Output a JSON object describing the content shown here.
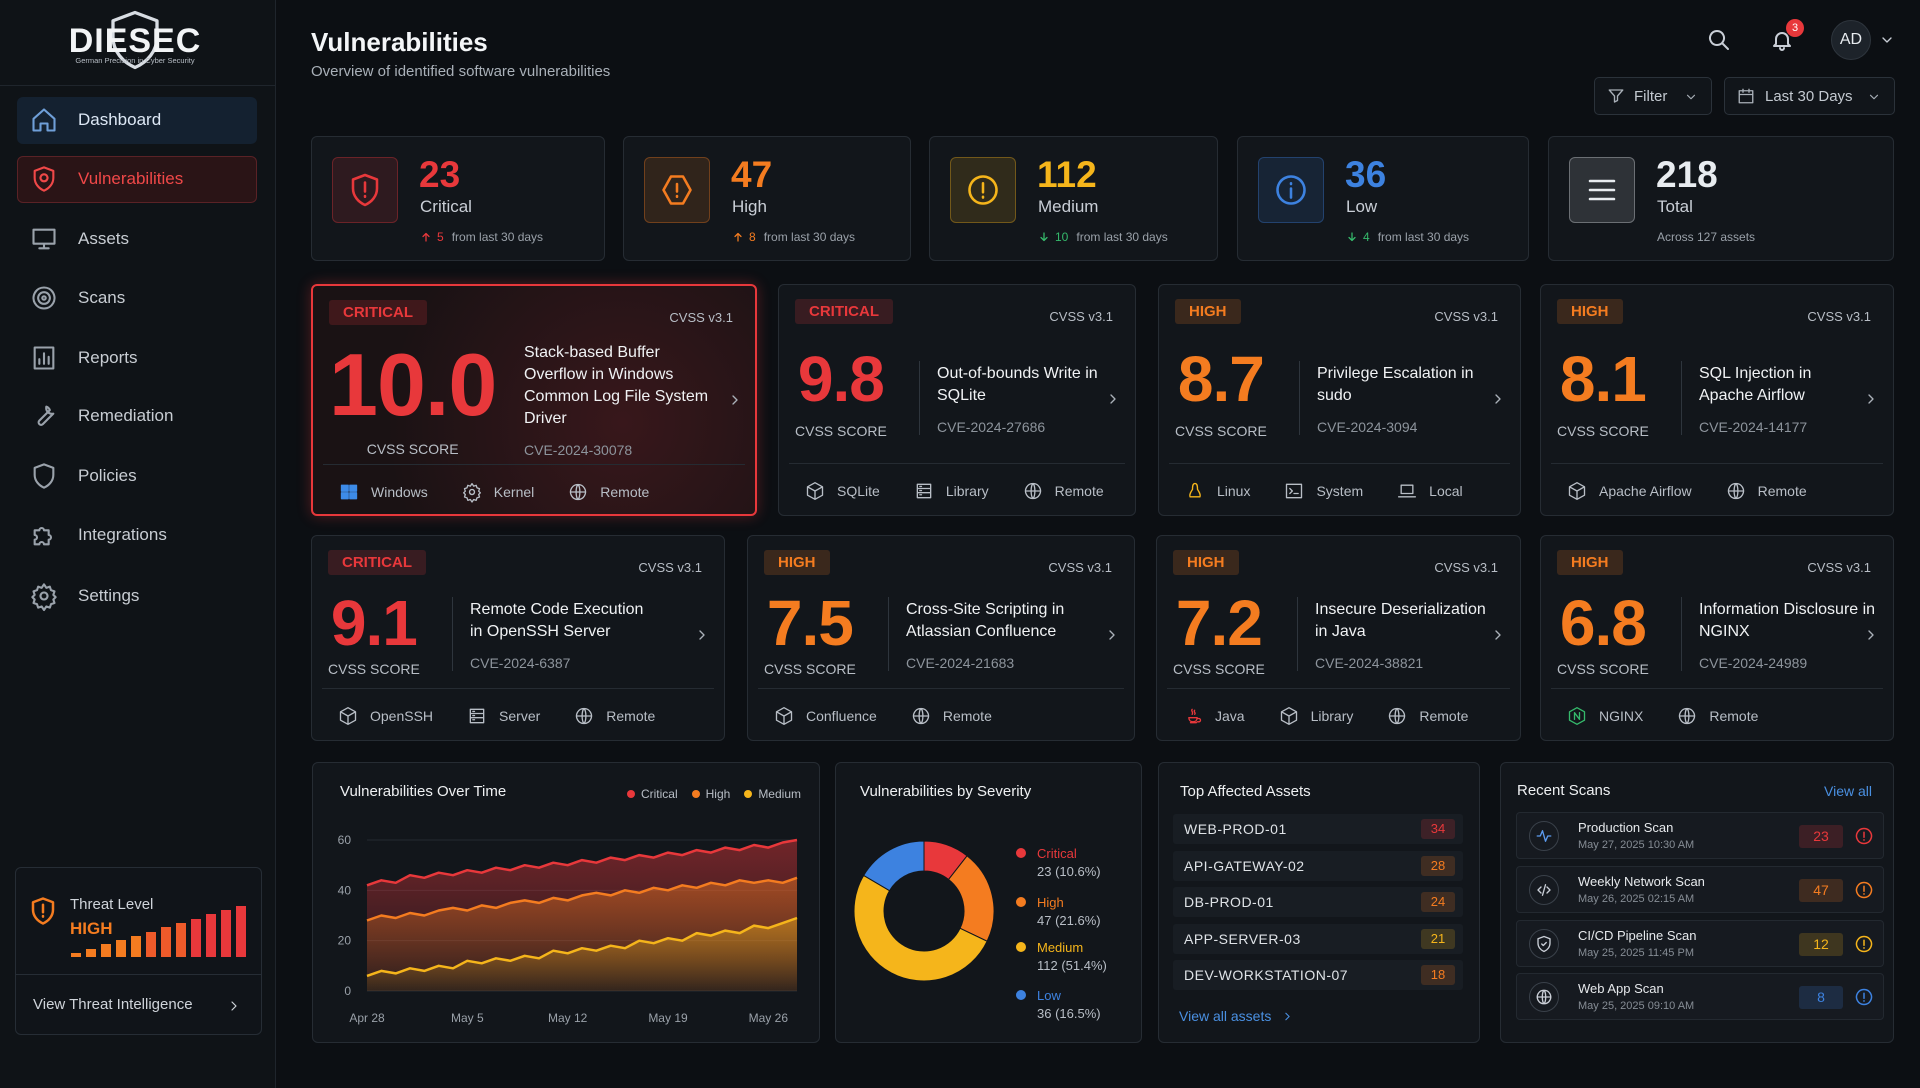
{
  "brand": {
    "name": "DIESEC",
    "tagline": "German Precision in Cyber Security"
  },
  "nav": {
    "items": [
      "Dashboard",
      "Vulnerabilities",
      "Assets",
      "Scans",
      "Reports",
      "Remediation",
      "Policies",
      "Integrations",
      "Settings"
    ],
    "active_index": 1
  },
  "threat": {
    "label": "Threat Level",
    "level": "HIGH",
    "link": "View Threat Intelligence"
  },
  "header": {
    "title": "Vulnerabilities",
    "subtitle": "Overview of identified software vulnerabilities",
    "notifications": 3,
    "user": "AD",
    "filter": "Filter",
    "range": "Last 30 Days"
  },
  "stats": [
    {
      "value": 23,
      "label": "Critical",
      "delta": 5,
      "trend": "up",
      "note": "from last 30 days",
      "color": "#e8383b"
    },
    {
      "value": 47,
      "label": "High",
      "delta": 8,
      "trend": "up",
      "note": "from last 30 days",
      "color": "#f47c20"
    },
    {
      "value": 112,
      "label": "Medium",
      "delta": 10,
      "trend": "down",
      "note": "from last 30 days",
      "color": "#f5b51b"
    },
    {
      "value": 36,
      "label": "Low",
      "delta": 4,
      "trend": "down",
      "note": "from last 30 days",
      "color": "#3d82e0"
    },
    {
      "value": 218,
      "label": "Total",
      "note": "Across 127 assets",
      "color": "#e8ecf0"
    }
  ],
  "vulns": [
    {
      "severity": "CRITICAL",
      "color": "#e8383b",
      "highlighted": true,
      "cvss": "CVSS v3.1",
      "score": "10.0",
      "score_label": "CVSS SCORE",
      "title": "Stack-based Buffer Overflow in Windows Common Log File System Driver",
      "cve": "CVE-2024-30078",
      "tags": [
        "Windows",
        "Kernel",
        "Remote"
      ]
    },
    {
      "severity": "CRITICAL",
      "color": "#e8383b",
      "cvss": "CVSS v3.1",
      "score": "9.8",
      "score_label": "CVSS SCORE",
      "title": "Out-of-bounds Write in SQLite",
      "cve": "CVE-2024-27686",
      "tags": [
        "SQLite",
        "Library",
        "Remote"
      ]
    },
    {
      "severity": "HIGH",
      "color": "#f47c20",
      "cvss": "CVSS v3.1",
      "score": "8.7",
      "score_label": "CVSS SCORE",
      "title": "Privilege Escalation in sudo",
      "cve": "CVE-2024-3094",
      "tags": [
        "Linux",
        "System",
        "Local"
      ]
    },
    {
      "severity": "HIGH",
      "color": "#f47c20",
      "cvss": "CVSS v3.1",
      "score": "8.1",
      "score_label": "CVSS SCORE",
      "title": "SQL Injection in Apache Airflow",
      "cve": "CVE-2024-14177",
      "tags": [
        "Apache Airflow",
        "Remote"
      ]
    },
    {
      "severity": "CRITICAL",
      "color": "#e8383b",
      "cvss": "CVSS v3.1",
      "score": "9.1",
      "score_label": "CVSS SCORE",
      "title": "Remote Code Execution in OpenSSH Server",
      "cve": "CVE-2024-6387",
      "tags": [
        "OpenSSH",
        "Server",
        "Remote"
      ]
    },
    {
      "severity": "HIGH",
      "color": "#f47c20",
      "cvss": "CVSS v3.1",
      "score": "7.5",
      "score_label": "CVSS SCORE",
      "title": "Cross-Site Scripting in Atlassian Confluence",
      "cve": "CVE-2024-21683",
      "tags": [
        "Confluence",
        "Remote"
      ]
    },
    {
      "severity": "HIGH",
      "color": "#f47c20",
      "cvss": "CVSS v3.1",
      "score": "7.2",
      "score_label": "CVSS SCORE",
      "title": "Insecure Deserialization in Java",
      "cve": "CVE-2024-38821",
      "tags": [
        "Java",
        "Library",
        "Remote"
      ]
    },
    {
      "severity": "HIGH",
      "color": "#f47c20",
      "cvss": "CVSS v3.1",
      "score": "6.8",
      "score_label": "CVSS SCORE",
      "title": "Information Disclosure in NGINX",
      "cve": "CVE-2024-24989",
      "tags": [
        "NGINX",
        "Remote"
      ]
    }
  ],
  "chart_data": [
    {
      "type": "line",
      "title": "Vulnerabilities Over Time",
      "categories": [
        "Apr 28",
        null,
        null,
        null,
        null,
        null,
        null,
        "May 5",
        null,
        null,
        null,
        null,
        null,
        null,
        "May 12",
        null,
        null,
        null,
        null,
        null,
        null,
        "May 19",
        null,
        null,
        null,
        null,
        null,
        null,
        "May 26",
        null,
        null
      ],
      "series": [
        {
          "name": "Critical",
          "color": "#e8383b",
          "values": [
            42,
            44,
            43,
            46,
            45,
            47,
            46,
            48,
            47,
            49,
            48,
            50,
            49,
            51,
            50,
            52,
            51,
            53,
            52,
            54,
            53,
            55,
            54,
            56,
            55,
            57,
            56,
            58,
            57,
            59,
            60
          ]
        },
        {
          "name": "High",
          "color": "#f47c20",
          "values": [
            28,
            30,
            29,
            31,
            30,
            32,
            33,
            32,
            34,
            33,
            35,
            36,
            35,
            37,
            36,
            38,
            39,
            38,
            40,
            39,
            41,
            40,
            42,
            41,
            43,
            42,
            44,
            43,
            44,
            43,
            45
          ]
        },
        {
          "name": "Medium",
          "color": "#f5b51b",
          "values": [
            6,
            8,
            7,
            9,
            8,
            10,
            9,
            12,
            11,
            13,
            12,
            14,
            13,
            16,
            15,
            17,
            16,
            18,
            17,
            20,
            19,
            21,
            20,
            23,
            22,
            24,
            23,
            26,
            25,
            27,
            29
          ]
        }
      ],
      "ylim": [
        0,
        60
      ],
      "yticks": [
        0,
        20,
        40,
        60
      ],
      "grid": true,
      "legend": "top-right"
    },
    {
      "type": "pie",
      "title": "Vulnerabilities by Severity",
      "donut": true,
      "categories": [
        "Critical",
        "High",
        "Medium",
        "Low"
      ],
      "values": [
        23,
        47,
        112,
        36
      ],
      "value_labels": [
        "23 (10.6%)",
        "47 (21.6%)",
        "112 (51.4%)",
        "36 (16.5%)"
      ],
      "colors": [
        "#e8383b",
        "#f47c20",
        "#f5b51b",
        "#3d82e0"
      ],
      "legend": "right"
    }
  ],
  "assets": {
    "title": "Top Affected Assets",
    "link": "View all assets",
    "rows": [
      {
        "name": "WEB-PROD-01",
        "count": 34,
        "color": "#e8383b"
      },
      {
        "name": "API-GATEWAY-02",
        "count": 28,
        "color": "#f47c20"
      },
      {
        "name": "DB-PROD-01",
        "count": 24,
        "color": "#f47c20"
      },
      {
        "name": "APP-SERVER-03",
        "count": 21,
        "color": "#f5b51b"
      },
      {
        "name": "DEV-WORKSTATION-07",
        "count": 18,
        "color": "#f47c20"
      }
    ]
  },
  "scans": {
    "title": "Recent Scans",
    "link": "View all",
    "rows": [
      {
        "name": "Production Scan",
        "date": "May 27, 2025 10:30 AM",
        "count": 23,
        "color": "#e8383b"
      },
      {
        "name": "Weekly Network Scan",
        "date": "May 26, 2025 02:15 AM",
        "count": 47,
        "color": "#f47c20"
      },
      {
        "name": "CI/CD Pipeline Scan",
        "date": "May 25, 2025 11:45 PM",
        "count": 12,
        "color": "#f5b51b"
      },
      {
        "name": "Web App Scan",
        "date": "May 25, 2025 09:10 AM",
        "count": 8,
        "color": "#3d82e0"
      }
    ]
  }
}
